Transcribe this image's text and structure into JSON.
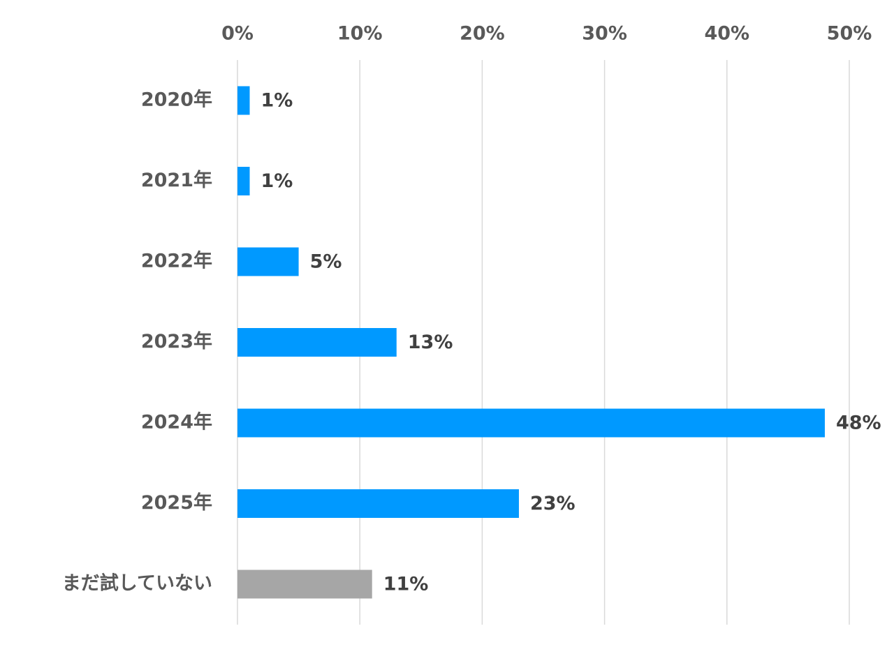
{
  "chart_data": {
    "type": "bar",
    "orientation": "horizontal",
    "categories": [
      "2020年",
      "2021年",
      "2022年",
      "2023年",
      "2024年",
      "2025年",
      "まだ試していない"
    ],
    "values": [
      1,
      1,
      5,
      13,
      48,
      23,
      11
    ],
    "data_labels": [
      "1%",
      "1%",
      "5%",
      "13%",
      "48%",
      "23%",
      "11%"
    ],
    "xlim": [
      0,
      50
    ],
    "x_ticks": [
      0,
      10,
      20,
      30,
      40,
      50
    ],
    "x_tick_labels": [
      "0%",
      "10%",
      "20%",
      "30%",
      "40%",
      "50%"
    ],
    "x_axis_position": "top",
    "grid": true,
    "legend": "none",
    "bar_colors": [
      "#0099ff",
      "#0099ff",
      "#0099ff",
      "#0099ff",
      "#0099ff",
      "#0099ff",
      "#a6a6a6"
    ],
    "title": "",
    "xlabel": "",
    "ylabel": ""
  }
}
